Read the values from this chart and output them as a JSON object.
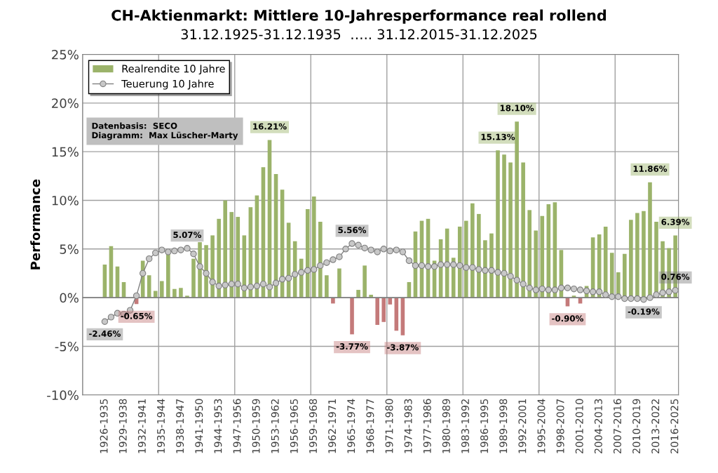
{
  "chart_data": {
    "type": "bar",
    "title": "CH-Aktienmarkt: Mittlere 10-Jahresperformance real rollend",
    "subtitle": "31.12.1925-31.12.1935  ….. 31.12.2015-31.12.2025",
    "ylabel": "Performance",
    "categories": [
      null,
      null,
      null,
      "1926-1935",
      null,
      null,
      "1929-1938",
      null,
      null,
      "1932-1941",
      null,
      null,
      "1935-1944",
      null,
      null,
      "1938-1947",
      null,
      null,
      "1941-1950",
      null,
      null,
      "1944-1953",
      null,
      null,
      "1947-1956",
      null,
      null,
      "1950-1959",
      null,
      null,
      "1953-1962",
      null,
      null,
      "1956-1965",
      null,
      null,
      "1959-1968",
      null,
      null,
      "1962-1971",
      null,
      null,
      "1965-1974",
      null,
      null,
      "1968-1977",
      null,
      null,
      "1971-1980",
      null,
      null,
      "1974-1983",
      null,
      null,
      "1977-1986",
      null,
      null,
      "1980-1989",
      null,
      null,
      "1983-1992",
      null,
      null,
      "1986-1995",
      null,
      null,
      "1989-1998",
      null,
      null,
      "1992-2001",
      null,
      null,
      "1995-2004",
      null,
      null,
      "1998-2007",
      null,
      null,
      "2001-2010",
      null,
      null,
      "2004-2013",
      null,
      null,
      "2007-2016",
      null,
      null,
      "2010-2019",
      null,
      null,
      "2013-2022",
      null,
      null,
      "2016-2025"
    ],
    "series": [
      {
        "name": "Realrendite 10 Jahre",
        "color": "#9bb36a",
        "colors": [
          null,
          null,
          null,
          "#9bb36a",
          "#9bb36a",
          "#9bb36a",
          "#9bb36a",
          "#9bb36a",
          "#c47a7a",
          "#9bb36a",
          "#9bb36a",
          "#9bb36a",
          "#9bb36a",
          "#9bb36a",
          "#9bb36a",
          "#9bb36a",
          "#9bb36a",
          "#9bb36a",
          "#9bb36a",
          "#9bb36a",
          "#9bb36a",
          "#9bb36a",
          "#9bb36a",
          "#9bb36a",
          "#9bb36a",
          "#9bb36a",
          "#9bb36a",
          "#9bb36a",
          "#9bb36a",
          "#9bb36a",
          "#9bb36a",
          "#9bb36a",
          "#9bb36a",
          "#9bb36a",
          "#9bb36a",
          "#9bb36a",
          "#9bb36a",
          "#9bb36a",
          "#9bb36a",
          "#c47a7a",
          "#9bb36a",
          "#9bb36a",
          "#c47a7a",
          "#9bb36a",
          "#9bb36a",
          "#9bb36a",
          "#c47a7a",
          "#c47a7a",
          "#c47a7a",
          "#c47a7a",
          "#c47a7a",
          "#9bb36a",
          "#9bb36a",
          "#9bb36a",
          "#9bb36a",
          "#9bb36a",
          "#9bb36a",
          "#9bb36a",
          "#9bb36a",
          "#9bb36a",
          "#9bb36a",
          "#9bb36a",
          "#9bb36a",
          "#9bb36a",
          "#9bb36a",
          "#9bb36a",
          "#9bb36a",
          "#9bb36a",
          "#9bb36a",
          "#9bb36a",
          "#9bb36a",
          "#9bb36a",
          "#9bb36a",
          "#9bb36a",
          "#9bb36a",
          "#9bb36a",
          "#c47a7a",
          "#9bb36a",
          "#c47a7a",
          "#9bb36a",
          "#9bb36a",
          "#9bb36a",
          "#9bb36a",
          "#9bb36a",
          "#9bb36a",
          "#9bb36a",
          "#9bb36a",
          "#9bb36a",
          "#9bb36a",
          "#9bb36a",
          "#9bb36a",
          "#9bb36a",
          "#9bb36a",
          "#9bb36a"
        ],
        "values": [
          null,
          null,
          null,
          3.4,
          5.3,
          3.2,
          1.6,
          0,
          -0.65,
          3.8,
          2.3,
          0.7,
          1.7,
          4.7,
          0.9,
          1.0,
          0.2,
          4.0,
          5.7,
          5.4,
          6.4,
          8.1,
          10.0,
          8.8,
          8.3,
          6.4,
          9.3,
          10.5,
          13.4,
          16.21,
          12.7,
          11.1,
          7.7,
          5.8,
          4.0,
          9.1,
          10.4,
          7.8,
          2.3,
          -0.6,
          3.0,
          0,
          -3.77,
          0.8,
          3.3,
          0.3,
          -2.8,
          -2.5,
          -0.7,
          -3.4,
          -3.87,
          1.6,
          6.8,
          7.9,
          8.1,
          3.8,
          6.0,
          7.1,
          4.1,
          7.3,
          7.9,
          9.7,
          8.6,
          5.9,
          6.6,
          15.13,
          14.7,
          13.9,
          18.1,
          13.9,
          9.0,
          6.9,
          8.4,
          9.6,
          9.8,
          4.9,
          -0.9,
          0.2,
          -0.6,
          1.2,
          6.2,
          6.5,
          7.3,
          4.6,
          2.6,
          4.5,
          8.0,
          8.7,
          8.9,
          11.86,
          7.8,
          5.8,
          5.1,
          6.39
        ],
        "value_labels": [
          null,
          null,
          null,
          null,
          null,
          null,
          null,
          null,
          "-0.65%",
          null,
          null,
          null,
          null,
          null,
          null,
          null,
          null,
          null,
          null,
          null,
          null,
          null,
          null,
          null,
          null,
          null,
          null,
          null,
          null,
          "16.21%",
          null,
          null,
          null,
          null,
          null,
          null,
          null,
          null,
          null,
          null,
          null,
          null,
          "-3.77%",
          null,
          null,
          null,
          null,
          null,
          null,
          null,
          "-3.87%",
          null,
          null,
          null,
          null,
          null,
          null,
          null,
          null,
          null,
          null,
          null,
          null,
          null,
          null,
          "15.13%",
          null,
          null,
          "18.10%",
          null,
          null,
          null,
          null,
          null,
          null,
          null,
          "-0.90%",
          null,
          null,
          null,
          null,
          null,
          null,
          null,
          null,
          null,
          null,
          null,
          null,
          "11.86%",
          null,
          null,
          null,
          "6.39%"
        ]
      },
      {
        "name": "Teuerung 10 Jahre",
        "type": "line",
        "color": "#808080",
        "marker": "circle",
        "line_style": "solid",
        "values": [
          null,
          null,
          null,
          -2.46,
          -2.0,
          -1.6,
          -1.7,
          -1.3,
          0.2,
          2.5,
          4.0,
          4.6,
          4.9,
          4.7,
          4.8,
          4.9,
          5.07,
          4.5,
          3.2,
          2.5,
          1.6,
          1.2,
          1.3,
          1.4,
          1.4,
          1.0,
          1.1,
          1.2,
          1.4,
          1.1,
          1.5,
          1.9,
          2.0,
          2.4,
          2.6,
          2.8,
          2.9,
          3.3,
          3.6,
          3.9,
          4.2,
          5.0,
          5.56,
          5.4,
          5.1,
          4.9,
          4.7,
          5.0,
          4.8,
          4.9,
          4.7,
          3.8,
          3.3,
          3.3,
          3.2,
          3.2,
          3.4,
          3.4,
          3.4,
          3.3,
          3.1,
          3.1,
          2.9,
          2.8,
          2.8,
          2.6,
          2.5,
          2.2,
          1.8,
          1.4,
          1.0,
          0.8,
          0.9,
          0.8,
          0.8,
          1.0,
          1.0,
          0.9,
          0.8,
          0.7,
          0.6,
          0.6,
          0.3,
          0.1,
          0.1,
          -0.1,
          -0.1,
          -0.1,
          -0.19,
          0.0,
          0.3,
          0.5,
          0.6,
          0.76
        ],
        "value_labels": [
          null,
          null,
          null,
          "-2.46%",
          null,
          null,
          null,
          null,
          null,
          null,
          null,
          null,
          null,
          null,
          null,
          null,
          "5.07%",
          null,
          null,
          null,
          null,
          null,
          null,
          null,
          null,
          null,
          null,
          null,
          null,
          null,
          null,
          null,
          null,
          null,
          null,
          null,
          null,
          null,
          null,
          null,
          null,
          null,
          "5.56%",
          null,
          null,
          null,
          null,
          null,
          null,
          null,
          null,
          null,
          null,
          null,
          null,
          null,
          null,
          null,
          null,
          null,
          null,
          null,
          null,
          null,
          null,
          null,
          null,
          null,
          null,
          null,
          null,
          null,
          null,
          null,
          null,
          null,
          null,
          null,
          null,
          null,
          null,
          null,
          null,
          null,
          null,
          null,
          null,
          null,
          "-0.19%",
          null,
          null,
          null,
          null,
          "0.76%"
        ]
      }
    ],
    "ylim": [
      -10,
      25
    ],
    "yticks": [
      {
        "value": -10,
        "label": "-10%"
      },
      {
        "value": -5,
        "label": "-5%"
      },
      {
        "value": 0,
        "label": "0%"
      },
      {
        "value": 5,
        "label": "5%"
      },
      {
        "value": 10,
        "label": "10%"
      },
      {
        "value": 15,
        "label": "15%"
      },
      {
        "value": 20,
        "label": "20%"
      },
      {
        "value": 25,
        "label": "25%"
      }
    ],
    "grid": true,
    "legend": "top left",
    "annotations": [
      "Datenbasis:  SECO",
      "Diagramm:  Max Lüscher-Marty"
    ]
  }
}
